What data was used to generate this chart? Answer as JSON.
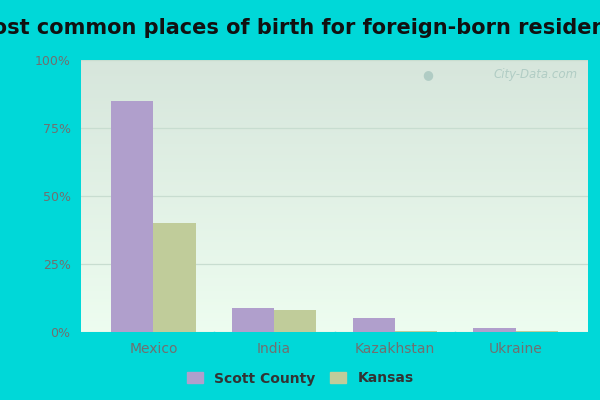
{
  "title": "Most common places of birth for foreign-born residents",
  "categories": [
    "Mexico",
    "India",
    "Kazakhstan",
    "Ukraine"
  ],
  "scott_county": [
    85,
    9,
    5,
    1.5
  ],
  "kansas": [
    40,
    8,
    0.5,
    0.5
  ],
  "scott_color": "#b09fcc",
  "kansas_color": "#c0cc9a",
  "legend_labels": [
    "Scott County",
    "Kansas"
  ],
  "yticks": [
    0,
    25,
    50,
    75,
    100
  ],
  "yticklabels": [
    "0%",
    "25%",
    "50%",
    "75%",
    "100%"
  ],
  "ylim": [
    0,
    100
  ],
  "background_outer": "#00d8d8",
  "bg_top": "#d8e8e0",
  "bg_bottom": "#edfaee",
  "title_fontsize": 15,
  "bar_width": 0.35,
  "grid_color": "#c8ddd0",
  "watermark": "City-Data.com",
  "tick_label_color": "#707070",
  "title_color": "#111111"
}
